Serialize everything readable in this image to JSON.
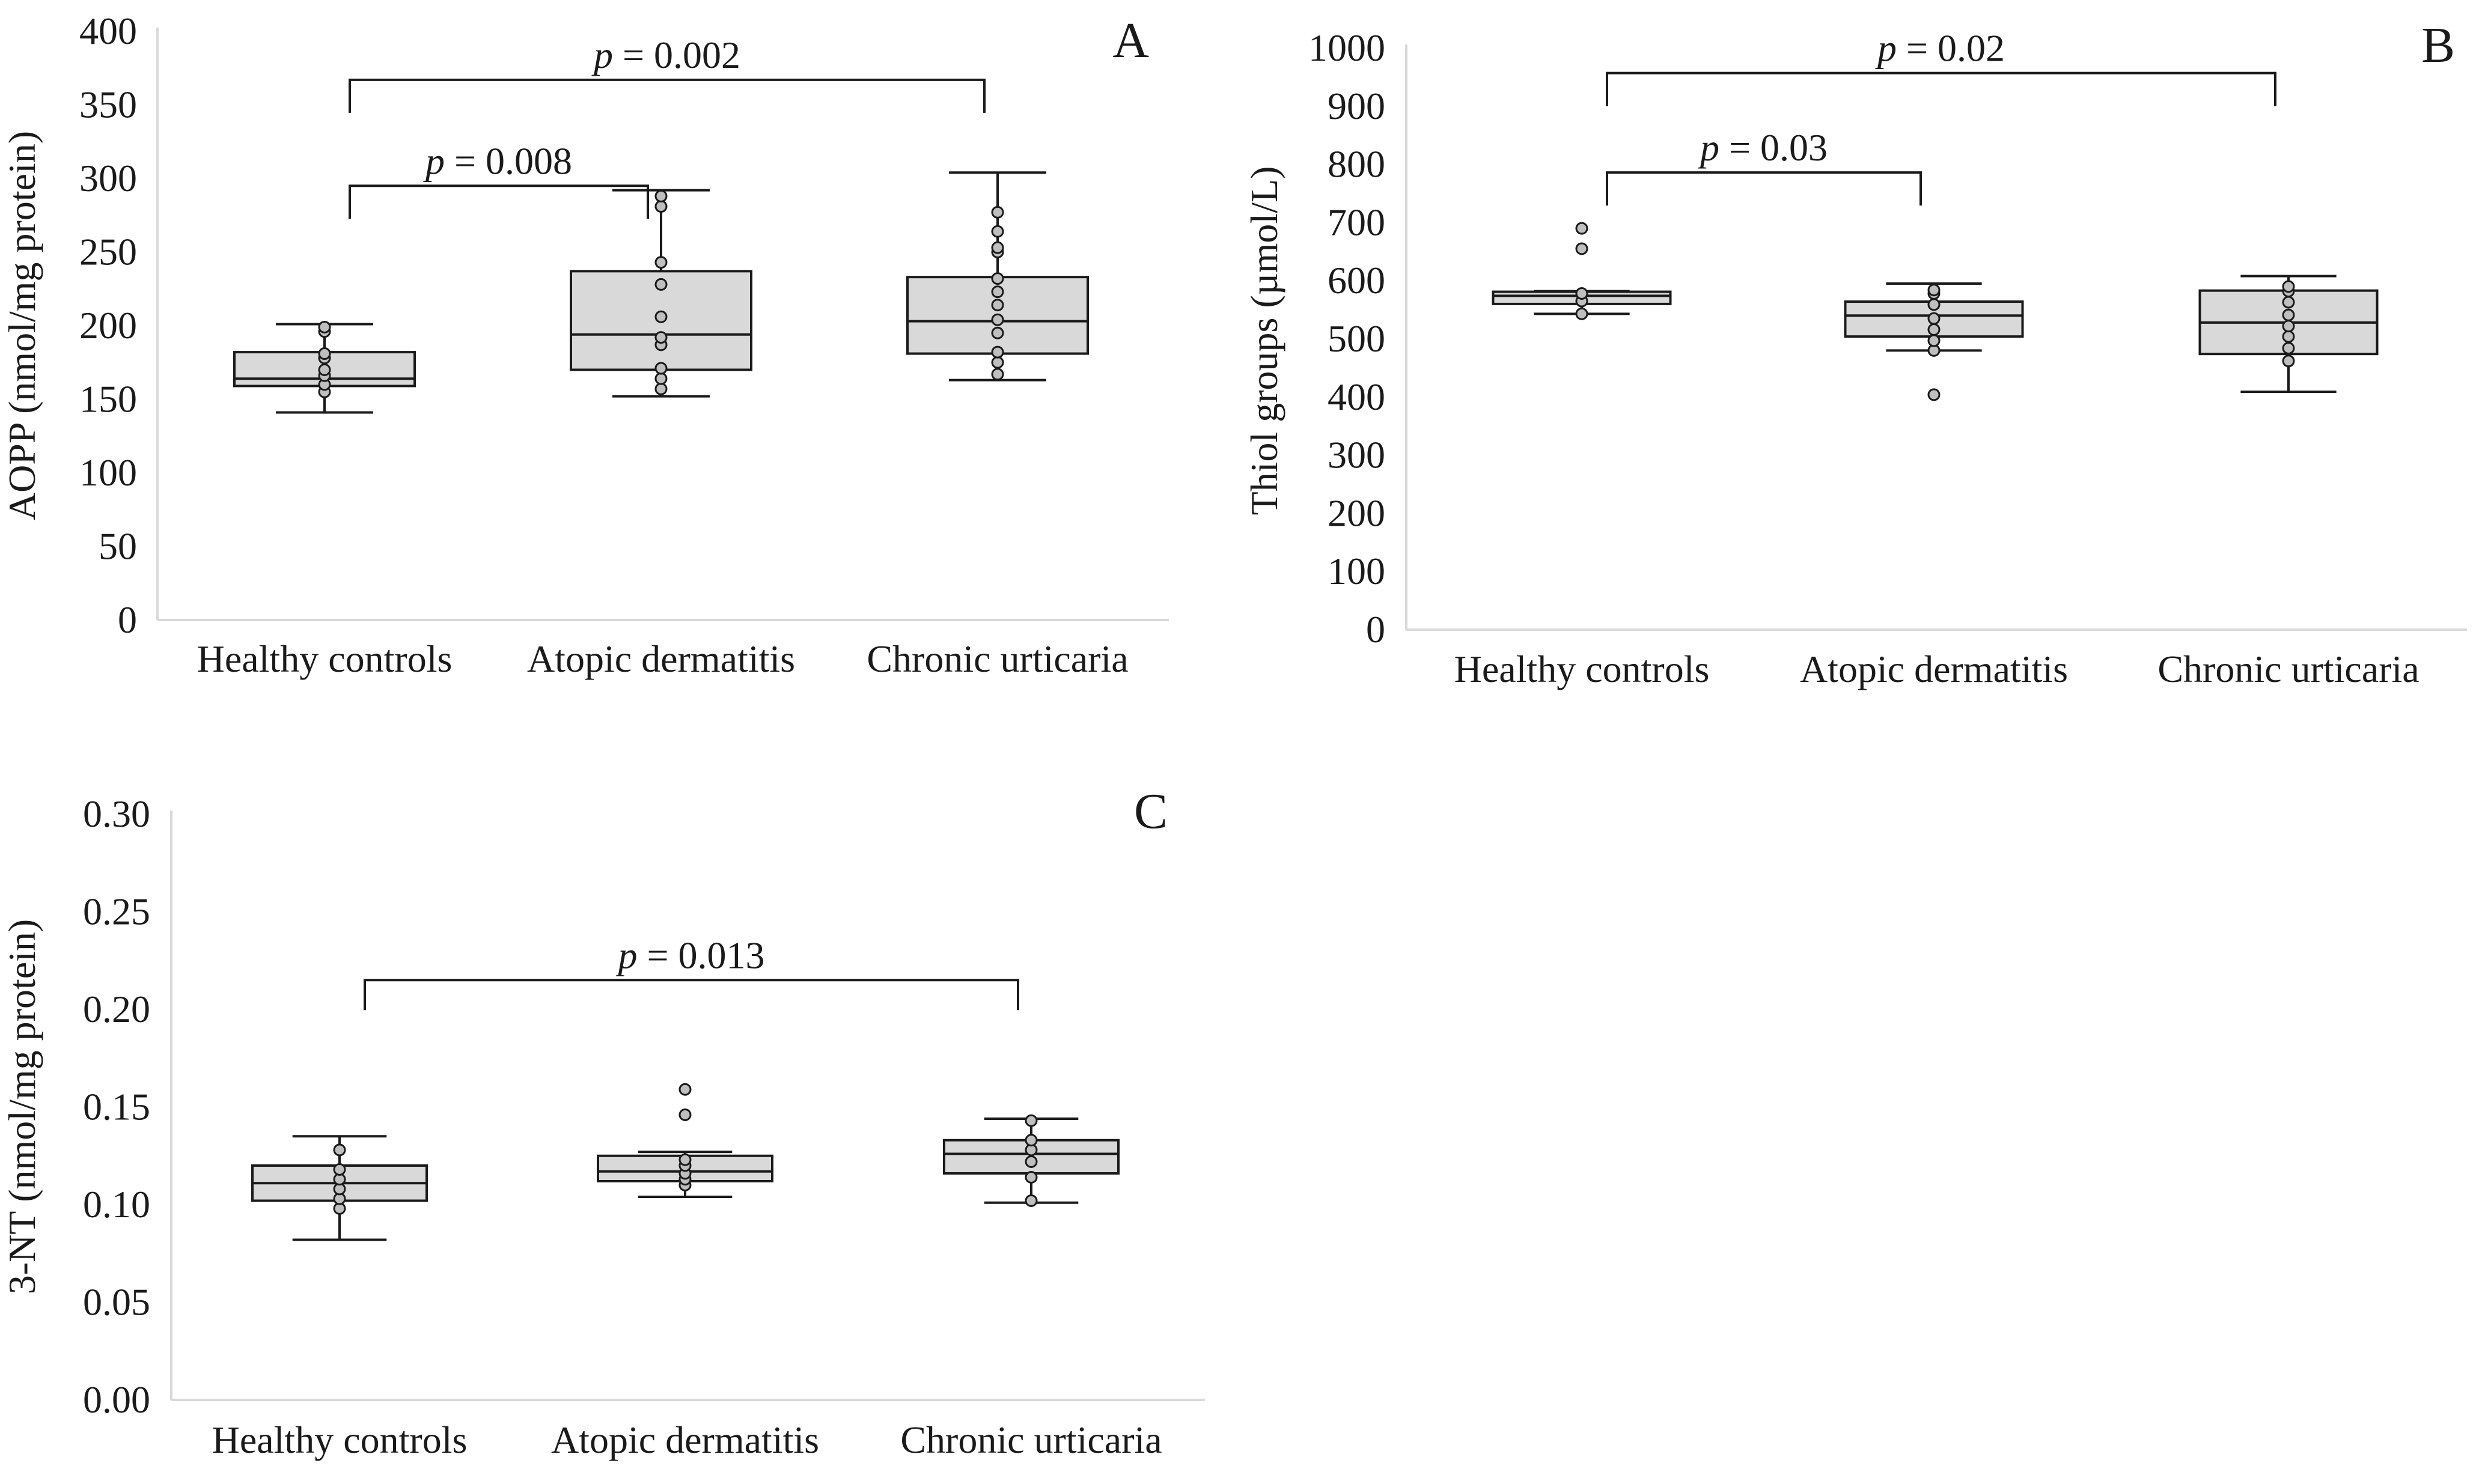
{
  "chart_data": [
    {
      "type": "box",
      "panel_letter": "A",
      "ylabel": "AOPP (nmol/mg protein)",
      "ylim": [
        0,
        400
      ],
      "yticks": [
        0,
        50,
        100,
        150,
        200,
        250,
        300,
        350,
        400
      ],
      "ytick_labels": [
        "0",
        "50",
        "100",
        "150",
        "200",
        "250",
        "300",
        "350",
        "400"
      ],
      "categories": [
        "Healthy controls",
        "Atopic dermatitis",
        "Chronic urticaria"
      ],
      "series": [
        {
          "name": "Healthy controls",
          "min": 141,
          "q1": 159,
          "median": 164,
          "q3": 182,
          "max": 201,
          "points": [
            155,
            160,
            166,
            170,
            178,
            181,
            196,
            199
          ]
        },
        {
          "name": "Atopic dermatitis",
          "min": 152,
          "q1": 170,
          "median": 194,
          "q3": 237,
          "max": 292,
          "points": [
            157,
            164,
            171,
            187,
            192,
            206,
            228,
            243,
            281,
            288
          ]
        },
        {
          "name": "Chronic urticaria",
          "min": 163,
          "q1": 181,
          "median": 203,
          "q3": 233,
          "max": 304,
          "points": [
            167,
            175,
            182,
            195,
            204,
            214,
            223,
            232,
            250,
            253,
            264,
            277
          ]
        }
      ],
      "comparisons": [
        {
          "from": "Healthy controls",
          "to": "Atopic dermatitis",
          "p_prefix": "p",
          "p_value": " = 0.008",
          "level": 295
        },
        {
          "from": "Healthy controls",
          "to": "Chronic urticaria",
          "p_prefix": "p",
          "p_value": " = 0.002",
          "level": 367
        }
      ]
    },
    {
      "type": "box",
      "panel_letter": "B",
      "ylabel": "Thiol groups (µmol/L)",
      "ylim": [
        0,
        1000
      ],
      "yticks": [
        0,
        100,
        200,
        300,
        400,
        500,
        600,
        700,
        800,
        900,
        1000
      ],
      "ytick_labels": [
        "0",
        "100",
        "200",
        "300",
        "400",
        "500",
        "600",
        "700",
        "800",
        "900",
        "1000"
      ],
      "categories": [
        "Healthy controls",
        "Atopic dermatitis",
        "Chronic urticaria"
      ],
      "series": [
        {
          "name": "Healthy controls",
          "min": 543,
          "q1": 560,
          "median": 574,
          "q3": 581,
          "max": 582,
          "points": [
            543,
            565,
            578,
            655,
            690
          ]
        },
        {
          "name": "Atopic dermatitis",
          "min": 480,
          "q1": 504,
          "median": 540,
          "q3": 564,
          "max": 595,
          "points": [
            404,
            480,
            497,
            516,
            535,
            559,
            578,
            584
          ]
        },
        {
          "name": "Chronic urticaria",
          "min": 409,
          "q1": 474,
          "median": 528,
          "q3": 583,
          "max": 608,
          "points": [
            462,
            484,
            504,
            522,
            541,
            563,
            582,
            590
          ]
        }
      ],
      "comparisons": [
        {
          "from": "Healthy controls",
          "to": "Atopic dermatitis",
          "p_prefix": "p",
          "p_value": " = 0.03",
          "level": 786
        },
        {
          "from": "Healthy controls",
          "to": "Chronic urticaria",
          "p_prefix": "p",
          "p_value": " = 0.02",
          "level": 957
        }
      ]
    },
    {
      "type": "box",
      "panel_letter": "C",
      "ylabel": "3-NT (nmol/mg protein)",
      "ylim": [
        0,
        0.3
      ],
      "yticks": [
        0,
        0.05,
        0.1,
        0.15,
        0.2,
        0.25,
        0.3
      ],
      "ytick_labels": [
        "0.00",
        "0.05",
        "0.10",
        "0.15",
        "0.20",
        "0.25",
        "0.30"
      ],
      "categories": [
        "Healthy controls",
        "Atopic dermatitis",
        "Chronic urticaria"
      ],
      "series": [
        {
          "name": "Healthy controls",
          "min": 0.082,
          "q1": 0.102,
          "median": 0.111,
          "q3": 0.12,
          "max": 0.135,
          "points": [
            0.098,
            0.103,
            0.108,
            0.113,
            0.118,
            0.128
          ]
        },
        {
          "name": "Atopic dermatitis",
          "min": 0.104,
          "q1": 0.112,
          "median": 0.117,
          "q3": 0.125,
          "max": 0.127,
          "points": [
            0.11,
            0.113,
            0.116,
            0.12,
            0.123,
            0.146,
            0.159
          ]
        },
        {
          "name": "Chronic urticaria",
          "min": 0.101,
          "q1": 0.116,
          "median": 0.126,
          "q3": 0.133,
          "max": 0.144,
          "points": [
            0.102,
            0.114,
            0.122,
            0.128,
            0.133,
            0.143
          ]
        }
      ],
      "comparisons": [
        {
          "from": "Healthy controls",
          "to": "Chronic urticaria",
          "p_prefix": "p",
          "p_value": " = 0.013",
          "level": 0.215
        }
      ]
    }
  ]
}
